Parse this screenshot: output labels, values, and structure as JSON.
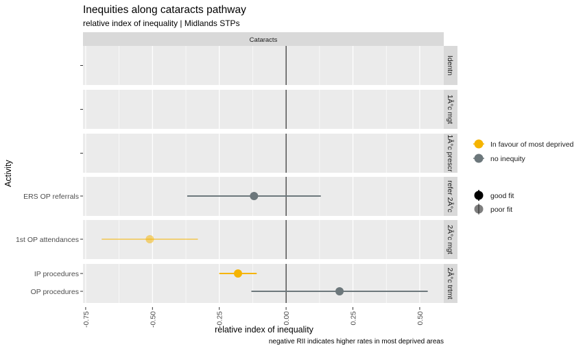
{
  "chart_data": {
    "type": "scatter",
    "title": "Inequities along cataracts pathway",
    "subtitle": "relative index of inequality | Midlands STPs",
    "facet_column": "Cataracts",
    "xlabel": "relative index of inequality",
    "ylabel": "Activity",
    "caption": "negative RII indicates higher rates in most deprived areas",
    "xlim": [
      -0.76,
      0.59
    ],
    "xticks": [
      -0.75,
      -0.5,
      -0.25,
      0.0,
      0.25,
      0.5
    ],
    "xtick_labels": [
      "-0.75",
      "-0.50",
      "-0.25",
      "0.00",
      "0.25",
      "0.50"
    ],
    "grid": true,
    "reference_line_x": 0,
    "colors": {
      "in_favour": "#F5B400",
      "no_inequity": "#6C777B",
      "panel_bg": "#EBEBEB",
      "strip_bg": "#D9D9D9",
      "grid": "#FFFFFF",
      "refline": "#000000"
    },
    "panels": [
      {
        "strip": "Identn",
        "rows": []
      },
      {
        "strip": "1Â°c mgt",
        "rows": []
      },
      {
        "strip": "1Â°c prescr",
        "rows": []
      },
      {
        "strip": "refer 2Â°c",
        "rows": [
          {
            "label": "ERS OP referrals",
            "rii": -0.12,
            "lo": -0.37,
            "hi": 0.13,
            "class": "no_inequity",
            "fit": "good"
          }
        ]
      },
      {
        "strip": "2Â°c mgt",
        "rows": [
          {
            "label": "1st OP attendances",
            "rii": -0.51,
            "lo": -0.69,
            "hi": -0.33,
            "class": "in_favour",
            "fit": "poor"
          }
        ]
      },
      {
        "strip": "2Â°c trtmt",
        "rows": [
          {
            "label": "IP procedures",
            "rii": -0.18,
            "lo": -0.25,
            "hi": -0.11,
            "class": "in_favour",
            "fit": "good"
          },
          {
            "label": "OP procedures",
            "rii": 0.2,
            "lo": -0.13,
            "hi": 0.53,
            "class": "no_inequity",
            "fit": "good"
          }
        ]
      }
    ],
    "legend": {
      "placement": "right",
      "colour_items": [
        {
          "label": "In favour of most deprived",
          "color": "#F5B400"
        },
        {
          "label": "no inequity",
          "color": "#6C777B"
        }
      ],
      "fit_items": [
        {
          "label": "good fit",
          "opacity": 1
        },
        {
          "label": "poor fit",
          "opacity": 0.5
        }
      ]
    }
  }
}
